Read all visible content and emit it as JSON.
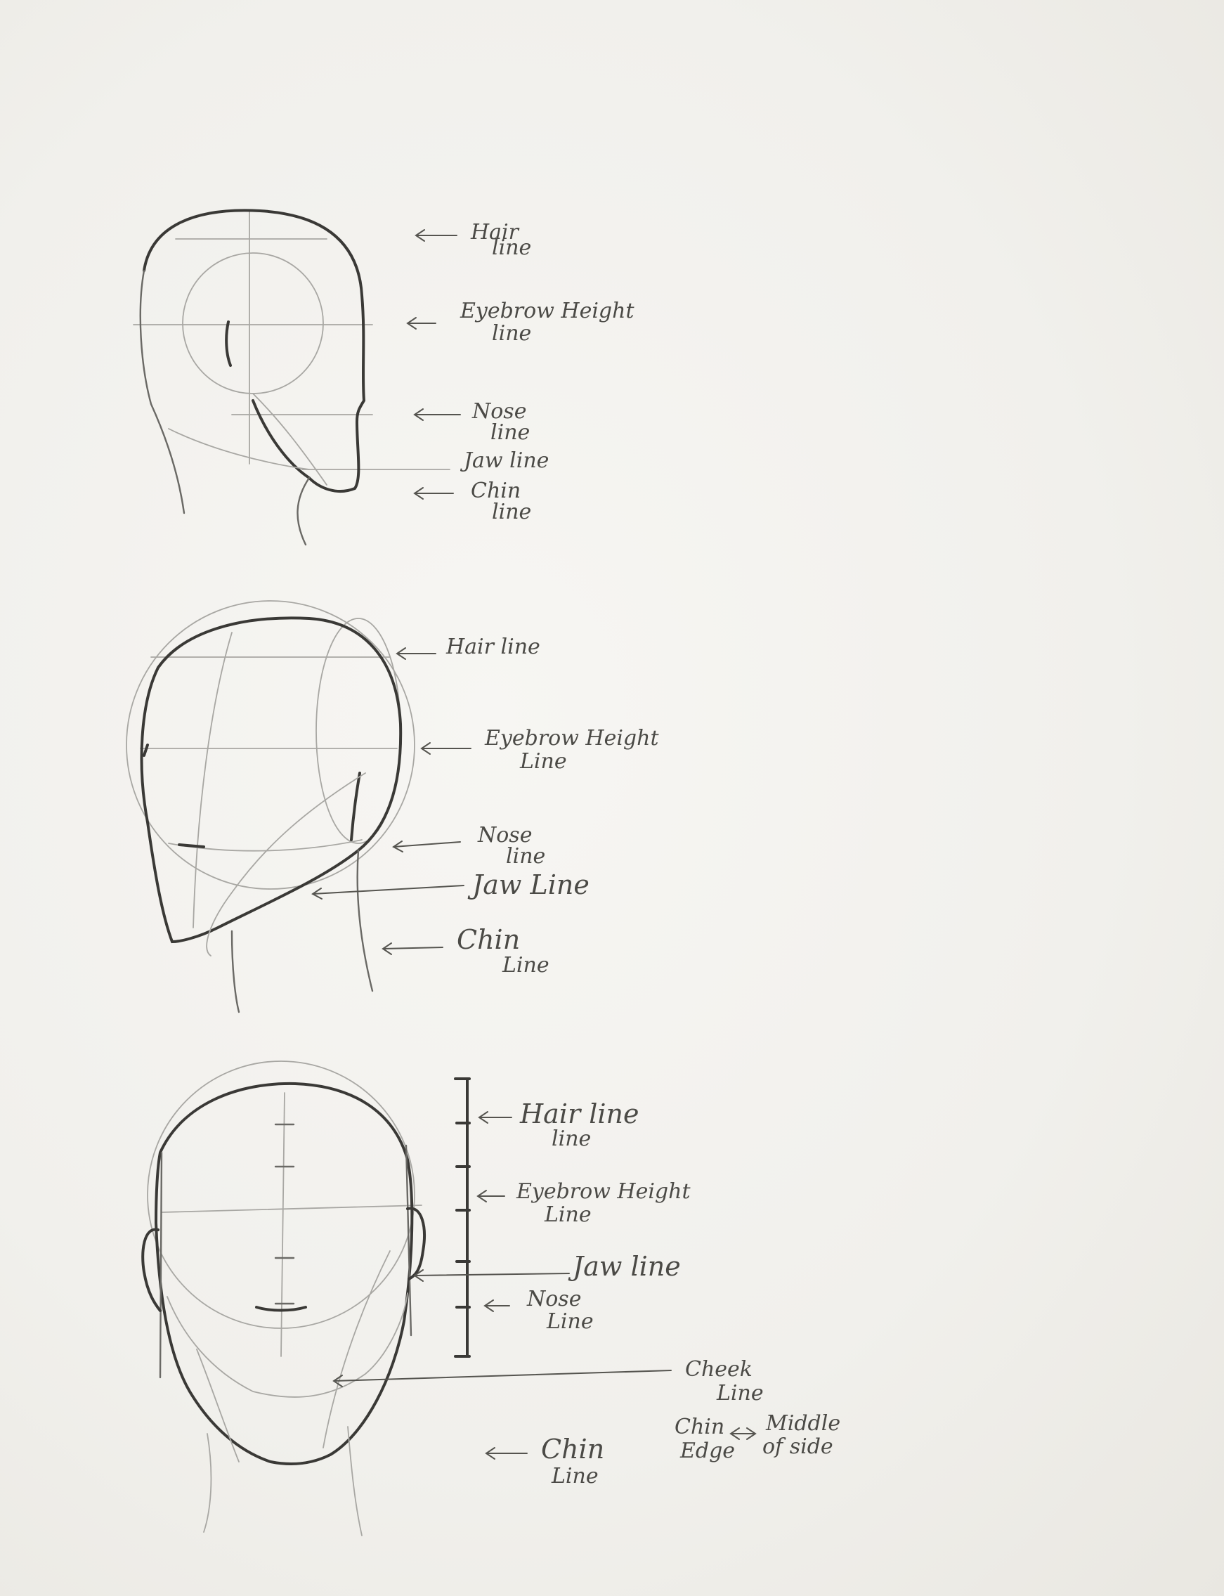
{
  "sketch": {
    "side_view": {
      "labels": {
        "hair": [
          "Hair",
          "line"
        ],
        "eyebrow": [
          "Eyebrow Height",
          "line"
        ],
        "nose": [
          "Nose",
          "line"
        ],
        "jaw": [
          "Jaw line"
        ],
        "chin": [
          "Chin",
          "line"
        ]
      }
    },
    "three_quarter_view": {
      "labels": {
        "hair": [
          "Hair line"
        ],
        "eyebrow": [
          "Eyebrow Height",
          "Line"
        ],
        "nose": [
          "Nose",
          "line"
        ],
        "jaw": [
          "Jaw Line"
        ],
        "chin": [
          "Chin",
          "Line"
        ]
      }
    },
    "front_view": {
      "labels": {
        "hair": [
          "Hair line",
          "line"
        ],
        "eyebrow": [
          "Eyebrow Height",
          "Line"
        ],
        "jaw": [
          "Jaw line"
        ],
        "nose": [
          "Nose",
          "Line"
        ],
        "cheek": [
          "Cheek",
          "Line"
        ],
        "chin_edge": [
          "Chin",
          "Edge"
        ],
        "middle_of_side": [
          "Middle",
          "of side"
        ],
        "chin": [
          "Chin",
          "Line"
        ]
      }
    }
  }
}
